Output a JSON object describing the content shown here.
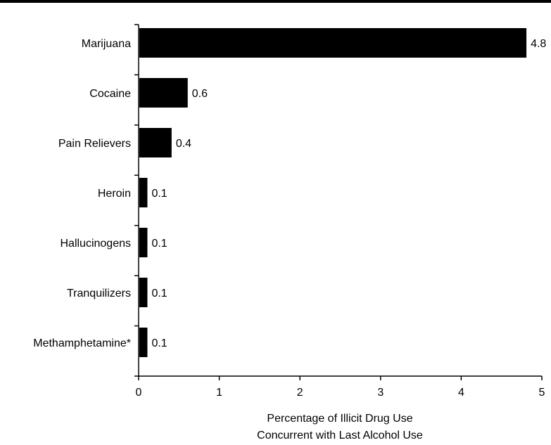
{
  "chart_data": {
    "type": "bar",
    "orientation": "horizontal",
    "categories": [
      "Marijuana",
      "Cocaine",
      "Pain Relievers",
      "Heroin",
      "Hallucinogens",
      "Tranquilizers",
      "Methamphetamine*"
    ],
    "values": [
      4.8,
      0.6,
      0.4,
      0.1,
      0.1,
      0.1,
      0.1
    ],
    "data_labels": [
      "4.8",
      "0.6",
      "0.4",
      "0.1",
      "0.1",
      "0.1",
      "0.1"
    ],
    "title": "",
    "xlabel_lines": [
      "Percentage of Illicit Drug Use",
      "Concurrent with Last Alcohol Use"
    ],
    "ylabel": "",
    "xlim": [
      0,
      5
    ],
    "xticks": [
      "0",
      "1",
      "2",
      "3",
      "4",
      "5"
    ],
    "grid": false,
    "legend": "none",
    "bar_color": "#000000"
  }
}
